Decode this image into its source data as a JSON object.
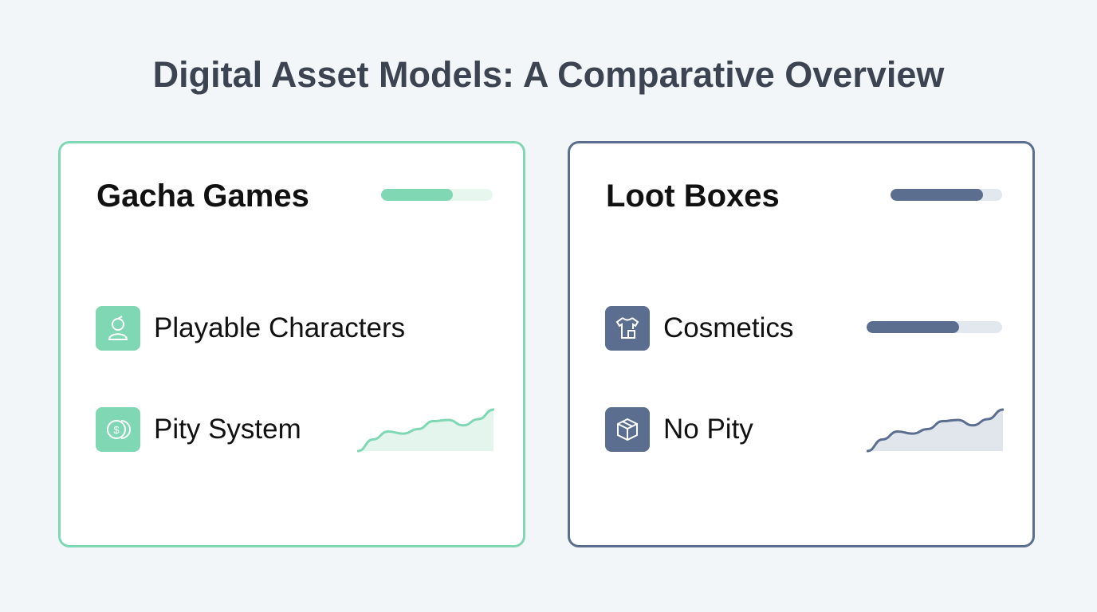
{
  "title": "Digital Asset Models: A Comparative Overview",
  "colors": {
    "background": "#f3f6f9",
    "gacha_accent": "#7fd7b4",
    "gacha_track": "#e8f6f0",
    "gacha_area": "#e4f5ee",
    "loot_accent": "#5b6e8f",
    "loot_track": "#e3e7ee",
    "loot_area": "#e1e5ec"
  },
  "cards": [
    {
      "title": "Gacha Games",
      "header_progress": 0.64,
      "items": [
        {
          "label": "Playable Characters",
          "icon": "character-icon"
        },
        {
          "label": "Pity System",
          "icon": "coin-icon",
          "trend": [
            0,
            28,
            47,
            42,
            53,
            72,
            75,
            62,
            77,
            100
          ]
        }
      ]
    },
    {
      "title": "Loot Boxes",
      "header_progress": 0.83,
      "items": [
        {
          "label": "Cosmetics",
          "icon": "shirt-icon",
          "progress": 0.68
        },
        {
          "label": "No Pity",
          "icon": "box-icon",
          "trend": [
            0,
            28,
            47,
            42,
            53,
            72,
            75,
            62,
            77,
            100
          ]
        }
      ]
    }
  ]
}
